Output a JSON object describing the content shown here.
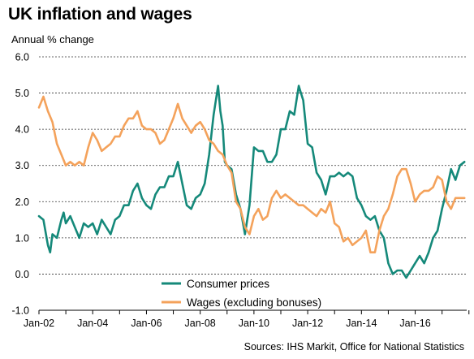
{
  "title": "UK inflation and wages",
  "source": "Sources: IHS Markit, Office for National Statistics",
  "colors": {
    "consumer_prices": "#15897a",
    "wages": "#f4a25b",
    "grid": "#333333"
  },
  "chart_data": {
    "type": "line",
    "title": "UK inflation and wages",
    "ylabel": "Annual % change",
    "xlabel": "",
    "ylim": [
      -1.0,
      6.0
    ],
    "y_ticks": [
      "6.0",
      "5.0",
      "4.0",
      "3.0",
      "2.0",
      "1.0",
      "0.0",
      "-1.0"
    ],
    "x_ticks": [
      "Jan-02",
      "Jan-04",
      "Jan-06",
      "Jan-08",
      "Jan-10",
      "Jan-12",
      "Jan-14",
      "Jan-16"
    ],
    "x_range": [
      "2002-01",
      "2017-12"
    ],
    "grid": "horizontal dashed",
    "legend": "bottom-center",
    "series": [
      {
        "name": "Consumer prices",
        "color": "#15897a",
        "points": [
          [
            "2002-01",
            1.6
          ],
          [
            "2002-03",
            1.5
          ],
          [
            "2002-05",
            0.8
          ],
          [
            "2002-06",
            0.6
          ],
          [
            "2002-07",
            1.1
          ],
          [
            "2002-09",
            1.0
          ],
          [
            "2002-11",
            1.5
          ],
          [
            "2002-12",
            1.7
          ],
          [
            "2003-01",
            1.4
          ],
          [
            "2003-03",
            1.6
          ],
          [
            "2003-05",
            1.3
          ],
          [
            "2003-07",
            1.0
          ],
          [
            "2003-09",
            1.4
          ],
          [
            "2003-11",
            1.3
          ],
          [
            "2004-01",
            1.4
          ],
          [
            "2004-03",
            1.1
          ],
          [
            "2004-05",
            1.5
          ],
          [
            "2004-07",
            1.3
          ],
          [
            "2004-09",
            1.1
          ],
          [
            "2004-11",
            1.5
          ],
          [
            "2005-01",
            1.6
          ],
          [
            "2005-03",
            1.9
          ],
          [
            "2005-05",
            1.9
          ],
          [
            "2005-07",
            2.3
          ],
          [
            "2005-09",
            2.5
          ],
          [
            "2005-11",
            2.1
          ],
          [
            "2006-01",
            1.9
          ],
          [
            "2006-03",
            1.8
          ],
          [
            "2006-05",
            2.2
          ],
          [
            "2006-07",
            2.4
          ],
          [
            "2006-09",
            2.4
          ],
          [
            "2006-11",
            2.7
          ],
          [
            "2007-01",
            2.7
          ],
          [
            "2007-03",
            3.1
          ],
          [
            "2007-05",
            2.5
          ],
          [
            "2007-07",
            1.9
          ],
          [
            "2007-09",
            1.8
          ],
          [
            "2007-11",
            2.1
          ],
          [
            "2008-01",
            2.2
          ],
          [
            "2008-03",
            2.5
          ],
          [
            "2008-05",
            3.3
          ],
          [
            "2008-07",
            4.4
          ],
          [
            "2008-09",
            5.2
          ],
          [
            "2008-10",
            4.5
          ],
          [
            "2008-11",
            4.1
          ],
          [
            "2008-12",
            3.1
          ],
          [
            "2009-01",
            3.0
          ],
          [
            "2009-03",
            2.9
          ],
          [
            "2009-05",
            2.2
          ],
          [
            "2009-07",
            1.8
          ],
          [
            "2009-09",
            1.1
          ],
          [
            "2009-11",
            1.9
          ],
          [
            "2010-01",
            3.5
          ],
          [
            "2010-03",
            3.4
          ],
          [
            "2010-05",
            3.4
          ],
          [
            "2010-07",
            3.1
          ],
          [
            "2010-09",
            3.1
          ],
          [
            "2010-11",
            3.3
          ],
          [
            "2011-01",
            4.0
          ],
          [
            "2011-03",
            4.0
          ],
          [
            "2011-05",
            4.5
          ],
          [
            "2011-07",
            4.4
          ],
          [
            "2011-09",
            5.2
          ],
          [
            "2011-10",
            5.0
          ],
          [
            "2011-11",
            4.8
          ],
          [
            "2012-01",
            3.6
          ],
          [
            "2012-03",
            3.5
          ],
          [
            "2012-05",
            2.8
          ],
          [
            "2012-07",
            2.6
          ],
          [
            "2012-09",
            2.2
          ],
          [
            "2012-11",
            2.7
          ],
          [
            "2013-01",
            2.7
          ],
          [
            "2013-03",
            2.8
          ],
          [
            "2013-05",
            2.7
          ],
          [
            "2013-07",
            2.8
          ],
          [
            "2013-09",
            2.7
          ],
          [
            "2013-11",
            2.1
          ],
          [
            "2014-01",
            1.9
          ],
          [
            "2014-03",
            1.6
          ],
          [
            "2014-05",
            1.5
          ],
          [
            "2014-07",
            1.6
          ],
          [
            "2014-09",
            1.2
          ],
          [
            "2014-11",
            1.0
          ],
          [
            "2015-01",
            0.3
          ],
          [
            "2015-03",
            0.0
          ],
          [
            "2015-05",
            0.1
          ],
          [
            "2015-07",
            0.1
          ],
          [
            "2015-09",
            -0.1
          ],
          [
            "2015-11",
            0.1
          ],
          [
            "2016-01",
            0.3
          ],
          [
            "2016-03",
            0.5
          ],
          [
            "2016-05",
            0.3
          ],
          [
            "2016-07",
            0.6
          ],
          [
            "2016-09",
            1.0
          ],
          [
            "2016-11",
            1.2
          ],
          [
            "2017-01",
            1.8
          ],
          [
            "2017-03",
            2.3
          ],
          [
            "2017-05",
            2.9
          ],
          [
            "2017-07",
            2.6
          ],
          [
            "2017-09",
            3.0
          ],
          [
            "2017-11",
            3.1
          ]
        ]
      },
      {
        "name": "Wages (excluding bonuses)",
        "color": "#f4a25b",
        "points": [
          [
            "2002-01",
            4.6
          ],
          [
            "2002-03",
            4.9
          ],
          [
            "2002-05",
            4.5
          ],
          [
            "2002-07",
            4.2
          ],
          [
            "2002-09",
            3.6
          ],
          [
            "2002-11",
            3.3
          ],
          [
            "2003-01",
            3.0
          ],
          [
            "2003-03",
            3.1
          ],
          [
            "2003-05",
            3.0
          ],
          [
            "2003-07",
            3.1
          ],
          [
            "2003-09",
            3.0
          ],
          [
            "2003-11",
            3.5
          ],
          [
            "2004-01",
            3.9
          ],
          [
            "2004-03",
            3.7
          ],
          [
            "2004-05",
            3.4
          ],
          [
            "2004-07",
            3.5
          ],
          [
            "2004-09",
            3.6
          ],
          [
            "2004-11",
            3.8
          ],
          [
            "2005-01",
            3.8
          ],
          [
            "2005-03",
            4.1
          ],
          [
            "2005-05",
            4.3
          ],
          [
            "2005-07",
            4.3
          ],
          [
            "2005-09",
            4.5
          ],
          [
            "2005-11",
            4.1
          ],
          [
            "2006-01",
            4.0
          ],
          [
            "2006-03",
            4.0
          ],
          [
            "2006-05",
            3.9
          ],
          [
            "2006-07",
            3.6
          ],
          [
            "2006-09",
            3.7
          ],
          [
            "2006-11",
            4.0
          ],
          [
            "2007-01",
            4.3
          ],
          [
            "2007-03",
            4.7
          ],
          [
            "2007-05",
            4.3
          ],
          [
            "2007-07",
            4.1
          ],
          [
            "2007-09",
            3.9
          ],
          [
            "2007-11",
            4.1
          ],
          [
            "2008-01",
            4.2
          ],
          [
            "2008-03",
            4.0
          ],
          [
            "2008-05",
            3.7
          ],
          [
            "2008-07",
            3.6
          ],
          [
            "2008-09",
            3.4
          ],
          [
            "2008-11",
            3.3
          ],
          [
            "2009-01",
            3.0
          ],
          [
            "2009-03",
            2.8
          ],
          [
            "2009-05",
            2.0
          ],
          [
            "2009-07",
            1.8
          ],
          [
            "2009-09",
            1.3
          ],
          [
            "2009-11",
            1.1
          ],
          [
            "2010-01",
            1.6
          ],
          [
            "2010-03",
            1.8
          ],
          [
            "2010-05",
            1.5
          ],
          [
            "2010-07",
            1.6
          ],
          [
            "2010-09",
            2.1
          ],
          [
            "2010-11",
            2.3
          ],
          [
            "2011-01",
            2.1
          ],
          [
            "2011-03",
            2.2
          ],
          [
            "2011-05",
            2.1
          ],
          [
            "2011-07",
            2.0
          ],
          [
            "2011-09",
            1.9
          ],
          [
            "2011-11",
            1.9
          ],
          [
            "2012-01",
            1.8
          ],
          [
            "2012-03",
            1.7
          ],
          [
            "2012-05",
            1.6
          ],
          [
            "2012-07",
            1.8
          ],
          [
            "2012-09",
            1.7
          ],
          [
            "2012-11",
            2.0
          ],
          [
            "2013-01",
            1.4
          ],
          [
            "2013-03",
            1.3
          ],
          [
            "2013-05",
            0.9
          ],
          [
            "2013-07",
            1.0
          ],
          [
            "2013-09",
            0.8
          ],
          [
            "2013-11",
            0.9
          ],
          [
            "2014-01",
            1.0
          ],
          [
            "2014-03",
            1.2
          ],
          [
            "2014-05",
            0.6
          ],
          [
            "2014-07",
            0.6
          ],
          [
            "2014-09",
            1.2
          ],
          [
            "2014-11",
            1.6
          ],
          [
            "2015-01",
            1.8
          ],
          [
            "2015-03",
            2.2
          ],
          [
            "2015-05",
            2.7
          ],
          [
            "2015-07",
            2.9
          ],
          [
            "2015-09",
            2.9
          ],
          [
            "2015-11",
            2.5
          ],
          [
            "2016-01",
            2.0
          ],
          [
            "2016-03",
            2.2
          ],
          [
            "2016-05",
            2.3
          ],
          [
            "2016-07",
            2.3
          ],
          [
            "2016-09",
            2.4
          ],
          [
            "2016-11",
            2.7
          ],
          [
            "2017-01",
            2.6
          ],
          [
            "2017-03",
            2.0
          ],
          [
            "2017-05",
            1.8
          ],
          [
            "2017-07",
            2.1
          ],
          [
            "2017-09",
            2.1
          ],
          [
            "2017-11",
            2.1
          ]
        ]
      }
    ]
  }
}
